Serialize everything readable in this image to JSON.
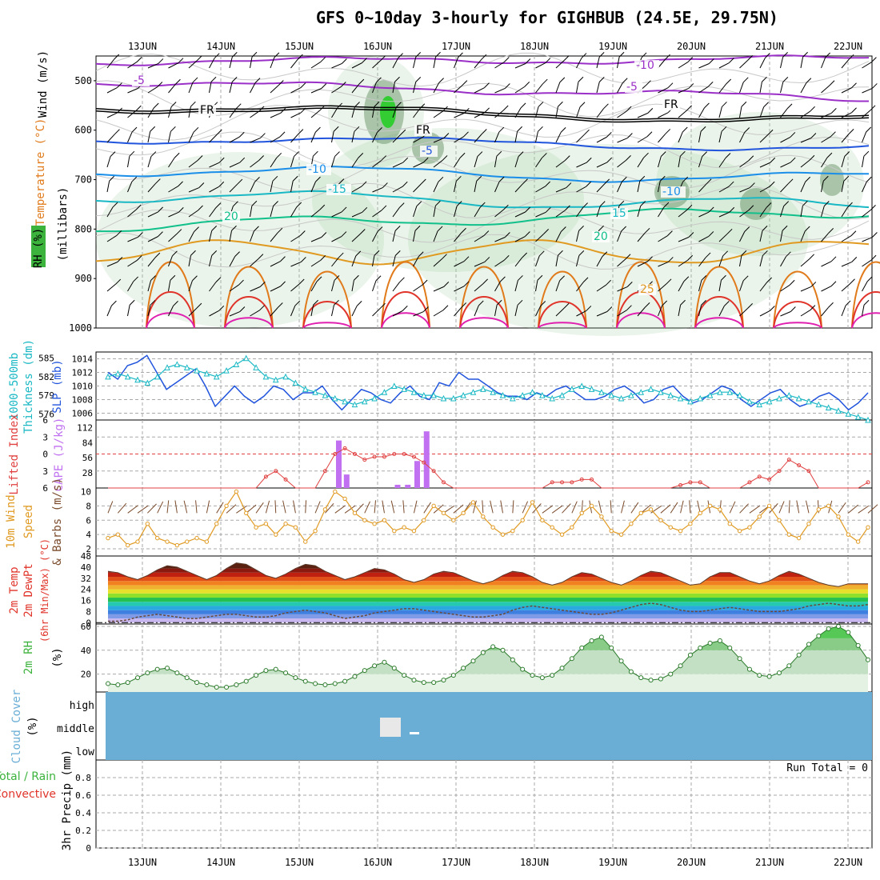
{
  "title": "GFS 0~10day 3-hourly for GIGHBUB (24.5E, 29.75N)",
  "colors": {
    "purple": "#9b30c8",
    "black": "#000000",
    "blue": "#2255dd",
    "azure": "#1a8ee8",
    "cyan": "#19b8c4",
    "teal": "#11c08a",
    "orange": "#e09a22",
    "darkorange": "#e07a1a",
    "red": "#e0342a",
    "magenta": "#e020b0",
    "rhgreen": "#3cb33c",
    "cloud": "#6aaed6",
    "lifted": "#e04040",
    "cape": "#c070f0",
    "wind10": "#e09a22",
    "barb": "#7a4a2a"
  },
  "chart_data": [
    {
      "type": "line",
      "panel": "upper-air cross section",
      "ylabel": "(millibars)",
      "left_labels": [
        "Wind (m/s)",
        "Temperature (°C)",
        "RH (%)"
      ],
      "x": [
        "13JUN",
        "14JUN",
        "15JUN",
        "16JUN",
        "17JUN",
        "18JUN",
        "19JUN",
        "20JUN",
        "21JUN",
        "22JUN"
      ],
      "yticks": [
        500,
        600,
        700,
        800,
        900,
        1000
      ],
      "ylim": [
        1000,
        450
      ],
      "contour_labels": [
        {
          "text": "-10",
          "color": "purple"
        },
        {
          "text": "-5",
          "color": "purple"
        },
        {
          "text": "-5",
          "color": "purple"
        },
        {
          "text": "FR",
          "color": "black"
        },
        {
          "text": "FR",
          "color": "black"
        },
        {
          "text": "FR",
          "color": "black"
        },
        {
          "text": "-5",
          "color": "blue"
        },
        {
          "text": "-10",
          "color": "azure"
        },
        {
          "text": "-15",
          "color": "cyan"
        },
        {
          "text": "-10",
          "color": "azure"
        },
        {
          "text": "15",
          "color": "cyan"
        },
        {
          "text": "20",
          "color": "teal"
        },
        {
          "text": "20",
          "color": "teal"
        },
        {
          "text": "25",
          "color": "orange"
        }
      ]
    },
    {
      "type": "line",
      "panel": "thickness-slp",
      "left_labels": [
        "1000-500mb",
        "Thickness (dm)",
        "SLP (mb)"
      ],
      "thickness_ticks": [
        576,
        579,
        582,
        585
      ],
      "slp_ticks": [
        1006,
        1008,
        1010,
        1012,
        1014
      ],
      "series": [
        {
          "name": "SLP",
          "color": "blue",
          "values": [
            1012,
            1011,
            1013,
            1013.5,
            1014.5,
            1012,
            1009.5,
            1010.5,
            1011.5,
            1012.5,
            1010,
            1007,
            1008.5,
            1010,
            1008.5,
            1007.5,
            1008.5,
            1010,
            1009.5,
            1008,
            1009,
            1009,
            1010,
            1008,
            1006.5,
            1008,
            1009.5,
            1009,
            1008,
            1007.5,
            1009,
            1010,
            1008.5,
            1008,
            1010.5,
            1010,
            1012,
            1011,
            1011,
            1010,
            1009,
            1008.5,
            1008.5,
            1008,
            1009,
            1008.5,
            1009.5,
            1010,
            1009,
            1008,
            1008,
            1008.5,
            1009.5,
            1010,
            1009,
            1007.5,
            1008,
            1009.5,
            1010,
            1008.5,
            1007.5,
            1008,
            1009,
            1010,
            1009.5,
            1008,
            1007,
            1008,
            1009,
            1009.5,
            1008,
            1007,
            1007.5,
            1008.5,
            1009,
            1008,
            1006.5,
            1007.5,
            1009
          ]
        },
        {
          "name": "Thickness",
          "color": "cyan",
          "values": [
            582,
            582.5,
            582,
            581.5,
            581,
            582,
            583.5,
            584,
            583.5,
            583,
            582.5,
            582,
            583,
            584,
            585,
            583.5,
            582,
            581.5,
            582,
            581,
            580,
            579.5,
            579,
            578.5,
            578,
            577.5,
            578,
            578.5,
            579.5,
            580.5,
            580,
            579.5,
            579,
            579,
            578.5,
            578.5,
            579,
            579.5,
            580,
            579.5,
            579,
            578.5,
            579,
            579.5,
            579,
            578.5,
            579,
            580,
            580.5,
            580,
            579.5,
            579,
            578.5,
            579,
            579.5,
            580,
            579.5,
            579,
            578.5,
            578,
            578.5,
            579,
            579.5,
            579.5,
            579,
            578,
            577.5,
            578,
            578.5,
            579,
            578.5,
            578,
            577.5,
            577,
            576.5,
            576,
            575.5,
            575
          ]
        }
      ]
    },
    {
      "type": "bar",
      "panel": "lifted-cape",
      "left_labels": [
        "Lifted Index",
        "CAPE (J/kg)"
      ],
      "li_ticks": [
        -6,
        -3,
        0,
        3,
        6
      ],
      "cape_ticks": [
        28,
        56,
        84,
        112
      ],
      "bars": [
        {
          "day": 15.5,
          "value": 88
        },
        {
          "day": 15.6,
          "value": 25
        },
        {
          "day": 16.25,
          "value": 6
        },
        {
          "day": 16.38,
          "value": 6
        },
        {
          "day": 16.5,
          "value": 50
        },
        {
          "day": 16.62,
          "value": 105
        }
      ],
      "lifted_index": [
        8,
        8,
        7,
        6.5,
        8,
        9,
        10,
        9.5,
        9,
        8,
        8.5,
        9,
        10,
        9.5,
        8,
        6,
        4,
        3,
        4.5,
        6,
        8,
        6,
        3,
        0,
        -1,
        0,
        1,
        0.5,
        0.5,
        0,
        0,
        0.5,
        1.5,
        3,
        5,
        7,
        9,
        10,
        9,
        8,
        8,
        8.5,
        8.5,
        7.5,
        7,
        5,
        5,
        5,
        4.5,
        4.5,
        6,
        6,
        8,
        9,
        9,
        8,
        6,
        6,
        5.5,
        5,
        5,
        6,
        7,
        8,
        7,
        5,
        4,
        4.5,
        3,
        1,
        2,
        3,
        6,
        7,
        8,
        9,
        7,
        5
      ]
    },
    {
      "type": "line",
      "panel": "wind10m",
      "left_labels": [
        "10m Wind",
        "Speed",
        "& Barbs (m/s)"
      ],
      "yticks": [
        2,
        4,
        6,
        8,
        10
      ],
      "series": [
        {
          "name": "10m Wind Speed",
          "color": "wind10",
          "values": [
            3.5,
            4,
            2.5,
            3,
            5.5,
            3.5,
            3,
            2.5,
            3,
            3.5,
            3,
            5.5,
            8,
            10,
            7,
            5,
            5.5,
            4,
            5.5,
            5,
            3,
            4.5,
            7.5,
            10,
            9,
            7,
            6,
            5.5,
            6,
            4.5,
            5,
            4.5,
            6,
            8,
            7,
            6,
            7,
            8.5,
            6.5,
            5,
            4,
            4.5,
            6,
            8.5,
            6,
            5,
            4,
            5,
            7,
            8,
            6.5,
            4.5,
            4,
            5.5,
            7,
            7.5,
            6,
            5,
            4.5,
            5.5,
            7,
            8,
            7.5,
            5.5,
            4.5,
            5,
            6.5,
            8,
            6,
            4,
            3.5,
            5.5,
            7.5,
            8,
            6.5,
            4,
            3,
            5
          ]
        }
      ]
    },
    {
      "type": "area",
      "panel": "2m temperature",
      "left_labels": [
        "2m Temp",
        "2m DewPt",
        "(6hr Min/Max) (°C)"
      ],
      "yticks": [
        0,
        8,
        16,
        24,
        32,
        40,
        48
      ],
      "series": [
        {
          "name": "2m Temp",
          "values": [
            37,
            36,
            33,
            31,
            34,
            38,
            41,
            40,
            37,
            34,
            31,
            34,
            39,
            43,
            42,
            38,
            34,
            32,
            35,
            39,
            42,
            41,
            37,
            34,
            31,
            33,
            36,
            39,
            38,
            35,
            31,
            29,
            31,
            35,
            37,
            36,
            33,
            30,
            28,
            30,
            34,
            37,
            36,
            33,
            29,
            27,
            29,
            33,
            36,
            35,
            32,
            29,
            27,
            30,
            34,
            37,
            36,
            33,
            30,
            27,
            28,
            33,
            36,
            36,
            33,
            30,
            28,
            30,
            34,
            37,
            35,
            32,
            29,
            27,
            26,
            28,
            28,
            28
          ]
        },
        {
          "name": "2m DewPt",
          "values": [
            1,
            1,
            2,
            4,
            5,
            6,
            5,
            4,
            3,
            3,
            4,
            5,
            6,
            6,
            5,
            4,
            4,
            5,
            7,
            8,
            9,
            8,
            7,
            5,
            3,
            4,
            5,
            7,
            8,
            9,
            10,
            10,
            9,
            8,
            7,
            6,
            5,
            4,
            4,
            5,
            6,
            9,
            11,
            12,
            11,
            10,
            9,
            8,
            7,
            6,
            6,
            7,
            9,
            11,
            13,
            14,
            13,
            11,
            9,
            8,
            8,
            9,
            10,
            11,
            10,
            9,
            8,
            8,
            8,
            9,
            10,
            12,
            13,
            14,
            13,
            12,
            12,
            13
          ]
        }
      ]
    },
    {
      "type": "area",
      "panel": "2m RH",
      "left_labels": [
        "2m RH",
        "(%)"
      ],
      "yticks": [
        20,
        40,
        60
      ],
      "series": [
        {
          "name": "2m RH",
          "values": [
            12,
            11,
            13,
            17,
            21,
            24,
            25,
            21,
            17,
            13,
            11,
            9,
            9,
            11,
            14,
            19,
            23,
            24,
            21,
            17,
            14,
            12,
            11,
            12,
            14,
            18,
            23,
            27,
            30,
            25,
            19,
            15,
            13,
            13,
            15,
            19,
            25,
            31,
            38,
            43,
            40,
            32,
            24,
            19,
            17,
            19,
            25,
            33,
            42,
            48,
            51,
            42,
            31,
            22,
            17,
            15,
            16,
            20,
            27,
            36,
            42,
            46,
            48,
            42,
            33,
            24,
            19,
            18,
            21,
            27,
            36,
            45,
            52,
            58,
            60,
            55,
            44,
            32
          ]
        }
      ]
    },
    {
      "type": "heatmap",
      "panel": "cloud cover",
      "left_labels": [
        "Cloud Cover",
        "(%)"
      ],
      "levels": [
        "high",
        "middle",
        "low"
      ]
    },
    {
      "type": "line",
      "panel": "3hr precip",
      "left_labels": [
        "Total / Rain",
        "Convective",
        "3hr Precip (mm)"
      ],
      "yticks": [
        0,
        0.2,
        0.4,
        0.6,
        0.8
      ],
      "annotation": "Run Total = 0"
    }
  ]
}
